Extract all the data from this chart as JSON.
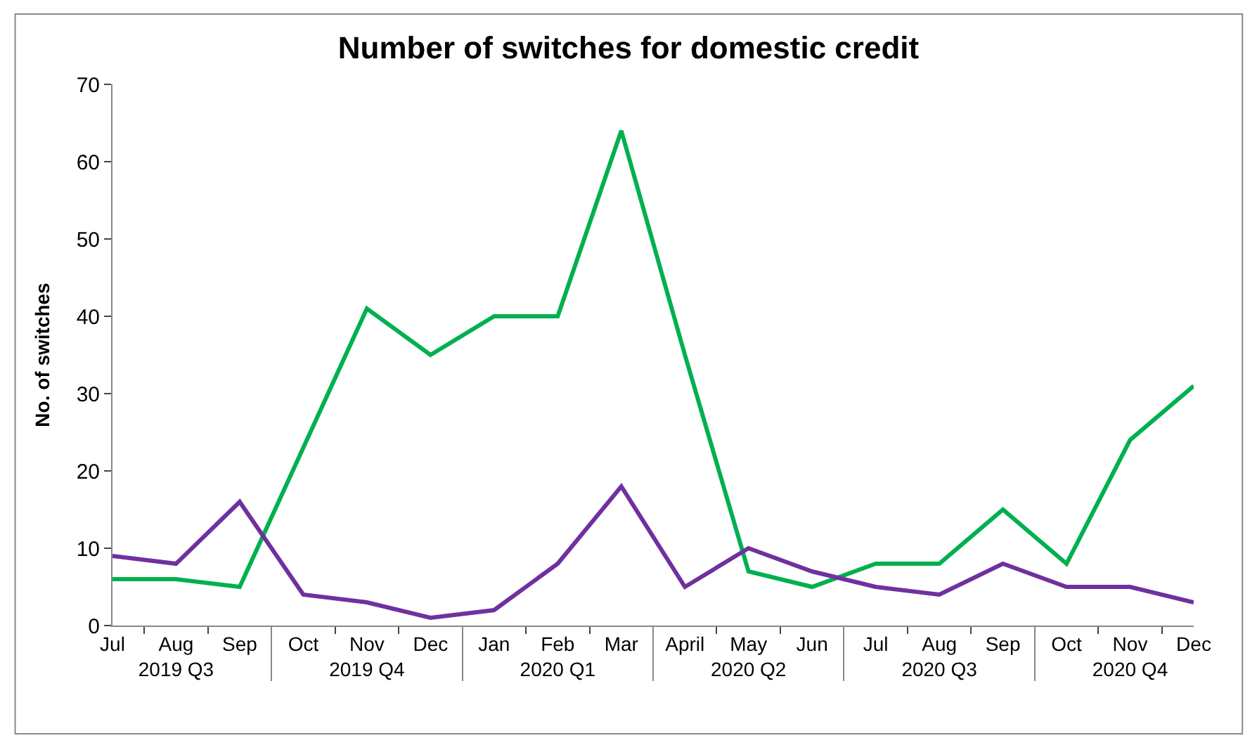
{
  "chart_data": {
    "type": "line",
    "title": "Number of switches for domestic credit",
    "ylabel": "No. of switches",
    "categories": [
      "Jul",
      "Aug",
      "Sep",
      "Oct",
      "Nov",
      "Dec",
      "Jan",
      "Feb",
      "Mar",
      "April",
      "May",
      "Jun",
      "Jul",
      "Aug",
      "Sep",
      "Oct",
      "Nov",
      "Dec"
    ],
    "annotations": [
      "2019 Q3",
      "2019 Q4",
      "2020 Q1",
      "2020 Q2",
      "2020 Q3",
      "2020 Q4"
    ],
    "series": [
      {
        "color": "#00b050",
        "values": [
          6,
          6,
          5,
          23,
          41,
          35,
          40,
          40,
          64,
          35,
          7,
          5,
          8,
          8,
          15,
          8,
          24,
          31
        ]
      },
      {
        "color": "#7030a0",
        "values": [
          9,
          8,
          16,
          4,
          3,
          1,
          2,
          8,
          18,
          5,
          10,
          7,
          5,
          4,
          8,
          5,
          5,
          3
        ]
      }
    ],
    "ylim": [
      0,
      70
    ],
    "yticks": [
      0,
      10,
      20,
      30,
      40,
      50,
      60,
      70
    ],
    "legend": false,
    "marker": "none",
    "line_style": "solid"
  }
}
